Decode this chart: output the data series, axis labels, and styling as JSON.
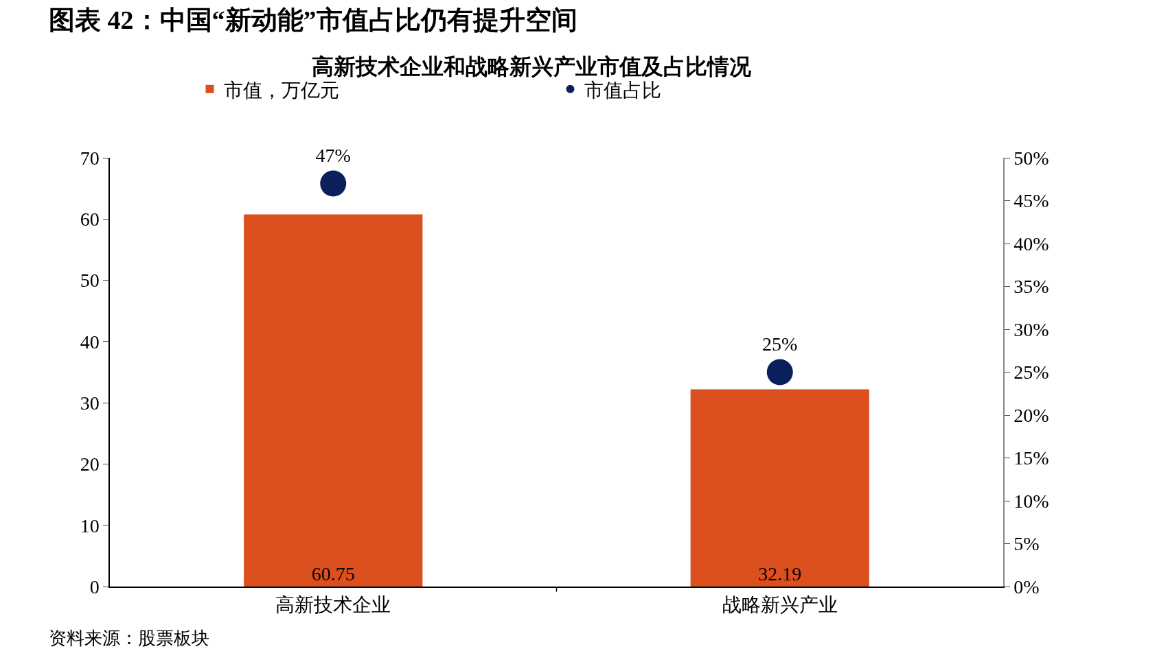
{
  "chart_data": {
    "type": "bar",
    "title": "图表 42：中国“新动能”市值占比仍有提升空间",
    "subtitle": "高新技术企业和战略新兴产业市值及占比情况",
    "categories": [
      "高新技术企业",
      "战略新兴产业"
    ],
    "series": [
      {
        "name": "市值，万亿元",
        "color": "#dc4f1f",
        "values": [
          60.75,
          32.19
        ],
        "value_labels": [
          "60.75",
          "32.19"
        ]
      },
      {
        "name": "市值占比",
        "type": "scatter",
        "axis": "y2",
        "color": "#0b1f5c",
        "values": [
          47,
          25
        ],
        "value_labels": [
          "47%",
          "25%"
        ]
      }
    ],
    "ylim": [
      0,
      70
    ],
    "yticks": [
      0,
      10,
      20,
      30,
      40,
      50,
      60,
      70
    ],
    "y2lim": [
      0,
      50
    ],
    "y2ticks": [
      {
        "value": 0,
        "label": "0%"
      },
      {
        "value": 5,
        "label": "5%"
      },
      {
        "value": 10,
        "label": "10%"
      },
      {
        "value": 15,
        "label": "15%"
      },
      {
        "value": 20,
        "label": "20%"
      },
      {
        "value": 25,
        "label": "25%"
      },
      {
        "value": 30,
        "label": "30%"
      },
      {
        "value": 35,
        "label": "35%"
      },
      {
        "value": 40,
        "label": "40%"
      },
      {
        "value": 45,
        "label": "45%"
      },
      {
        "value": 50,
        "label": "50%"
      }
    ],
    "grid": false,
    "legend": "top",
    "marker": "circle",
    "annotations": [
      "资料来源：股票板块"
    ]
  }
}
